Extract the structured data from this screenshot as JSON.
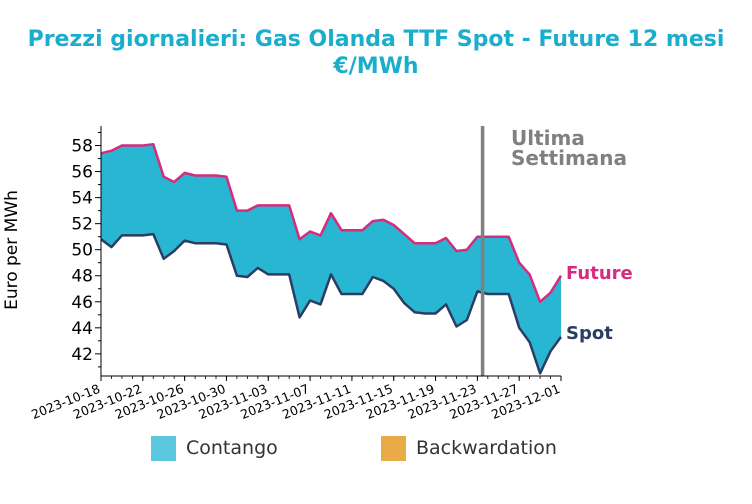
{
  "colors": {
    "title": "#1aaecc",
    "future": "#d62b7e",
    "spot": "#2b3d63",
    "fill": "#29b6d3",
    "contango": "#5bc8e0",
    "backwardation": "#e9aa48",
    "marker": "#808080"
  },
  "chart_data": {
    "type": "area",
    "title": "Prezzi giornalieri: Gas Olanda TTF Spot - Future 12 mesi",
    "subtitle": "€/MWh",
    "ylabel": "Euro per MWh",
    "xlabel": "",
    "ylim": [
      40.3,
      59.5
    ],
    "xlim": [
      "2023-10-18",
      "2023-12-01"
    ],
    "yticks": [
      42,
      44,
      46,
      48,
      50,
      52,
      54,
      56,
      58
    ],
    "xticks": [
      "2023-10-18",
      "2023-10-22",
      "2023-10-26",
      "2023-10-30",
      "2023-11-03",
      "2023-11-07",
      "2023-11-11",
      "2023-11-15",
      "2023-11-19",
      "2023-11-23",
      "2023-11-27",
      "2023-12-01"
    ],
    "grid": false,
    "series": [
      {
        "name": "Future",
        "x": [
          "2023-10-18",
          "2023-10-19",
          "2023-10-20",
          "2023-10-21",
          "2023-10-22",
          "2023-10-23",
          "2023-10-24",
          "2023-10-25",
          "2023-10-26",
          "2023-10-27",
          "2023-10-28",
          "2023-10-29",
          "2023-10-30",
          "2023-10-31",
          "2023-11-01",
          "2023-11-02",
          "2023-11-03",
          "2023-11-04",
          "2023-11-05",
          "2023-11-06",
          "2023-11-07",
          "2023-11-08",
          "2023-11-09",
          "2023-11-10",
          "2023-11-11",
          "2023-11-12",
          "2023-11-13",
          "2023-11-14",
          "2023-11-15",
          "2023-11-16",
          "2023-11-17",
          "2023-11-18",
          "2023-11-19",
          "2023-11-20",
          "2023-11-21",
          "2023-11-22",
          "2023-11-23",
          "2023-11-24",
          "2023-11-25",
          "2023-11-26",
          "2023-11-27",
          "2023-11-28",
          "2023-11-29",
          "2023-11-30",
          "2023-12-01"
        ],
        "values": [
          57.4,
          57.6,
          58.0,
          58.0,
          58.0,
          58.1,
          55.6,
          55.2,
          55.9,
          55.7,
          55.7,
          55.7,
          55.6,
          53.0,
          53.0,
          53.4,
          53.4,
          53.4,
          53.4,
          50.8,
          51.4,
          51.1,
          52.8,
          51.5,
          51.5,
          51.5,
          52.2,
          52.3,
          51.9,
          51.2,
          50.5,
          50.5,
          50.5,
          50.9,
          49.9,
          50.0,
          51.0,
          51.0,
          51.0,
          51.0,
          49.0,
          48.1,
          46.0,
          46.7,
          48.0
        ]
      },
      {
        "name": "Spot",
        "x": [
          "2023-10-18",
          "2023-10-19",
          "2023-10-20",
          "2023-10-21",
          "2023-10-22",
          "2023-10-23",
          "2023-10-24",
          "2023-10-25",
          "2023-10-26",
          "2023-10-27",
          "2023-10-28",
          "2023-10-29",
          "2023-10-30",
          "2023-10-31",
          "2023-11-01",
          "2023-11-02",
          "2023-11-03",
          "2023-11-04",
          "2023-11-05",
          "2023-11-06",
          "2023-11-07",
          "2023-11-08",
          "2023-11-09",
          "2023-11-10",
          "2023-11-11",
          "2023-11-12",
          "2023-11-13",
          "2023-11-14",
          "2023-11-15",
          "2023-11-16",
          "2023-11-17",
          "2023-11-18",
          "2023-11-19",
          "2023-11-20",
          "2023-11-21",
          "2023-11-22",
          "2023-11-23",
          "2023-11-24",
          "2023-11-25",
          "2023-11-26",
          "2023-11-27",
          "2023-11-28",
          "2023-11-29",
          "2023-11-30",
          "2023-12-01"
        ],
        "values": [
          50.8,
          50.2,
          51.1,
          51.1,
          51.1,
          51.2,
          49.3,
          49.9,
          50.7,
          50.5,
          50.5,
          50.5,
          50.4,
          48.0,
          47.9,
          48.6,
          48.1,
          48.1,
          48.1,
          44.8,
          46.1,
          45.8,
          48.1,
          46.6,
          46.6,
          46.6,
          47.9,
          47.6,
          47.0,
          45.9,
          45.2,
          45.1,
          45.1,
          45.8,
          44.1,
          44.6,
          46.8,
          46.6,
          46.6,
          46.6,
          44.0,
          42.9,
          40.5,
          42.2,
          43.3
        ]
      }
    ],
    "annotations": {
      "marker_x": "2023-11-23 12:00",
      "marker_label_line1": "Ultima",
      "marker_label_line2": "Settimana",
      "future_label": "Future",
      "spot_label": "Spot"
    },
    "legend": {
      "placement": "bottom",
      "items": [
        {
          "label": "Contango",
          "color": "#5bc8e0"
        },
        {
          "label": "Backwardation",
          "color": "#e9aa48"
        }
      ]
    }
  }
}
